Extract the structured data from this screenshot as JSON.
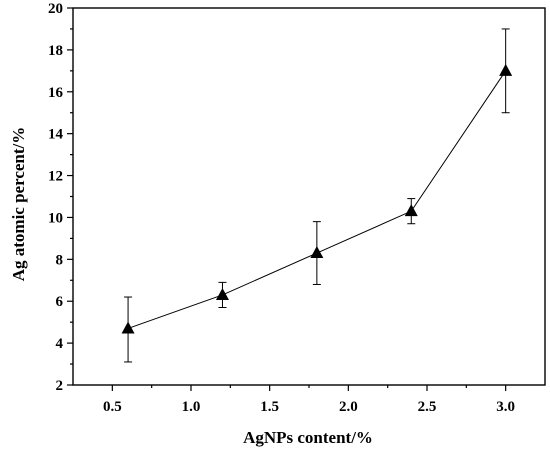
{
  "chart_data": {
    "type": "line",
    "title": "",
    "xlabel": "AgNPs content/%",
    "ylabel": "Ag atomic percent/%",
    "xlim": [
      0.25,
      3.25
    ],
    "ylim": [
      2,
      20
    ],
    "x_ticks": [
      0.5,
      1.0,
      1.5,
      2.0,
      2.5,
      3.0
    ],
    "x_tick_labels": [
      "0.5",
      "1.0",
      "1.5",
      "2.0",
      "2.5",
      "3.0"
    ],
    "y_ticks": [
      2,
      4,
      6,
      8,
      10,
      12,
      14,
      16,
      18,
      20
    ],
    "y_tick_labels": [
      "2",
      "4",
      "6",
      "8",
      "10",
      "12",
      "14",
      "16",
      "18",
      "20"
    ],
    "grid": false,
    "legend": "none",
    "marker": "triangle",
    "series": [
      {
        "x": [
          0.6,
          1.2,
          1.8,
          2.4,
          3.0
        ],
        "y": [
          4.7,
          6.3,
          8.3,
          10.3,
          17.0
        ],
        "y_err_low": [
          3.1,
          5.7,
          6.8,
          9.7,
          15.0
        ],
        "y_err_high": [
          6.2,
          6.9,
          9.8,
          10.9,
          19.0
        ]
      }
    ]
  }
}
